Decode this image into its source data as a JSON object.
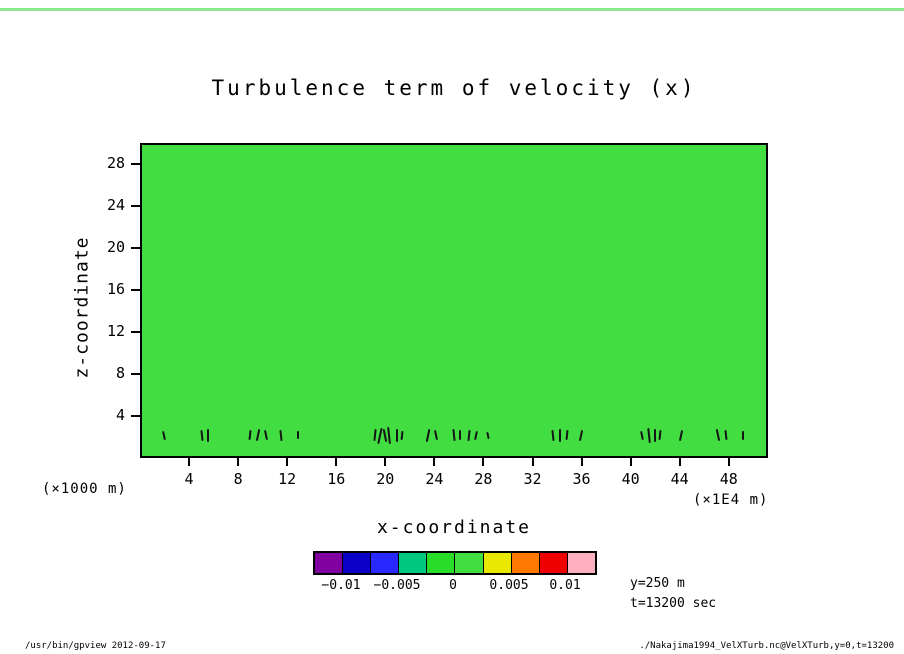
{
  "page": {
    "title": "Turbulence term of velocity (x)",
    "footer_left": "/usr/bin/gpview  2012-09-17",
    "footer_right": "./Nakajima1994_VelXTurb.nc@VelXTurb,y=0,t=13200"
  },
  "axes": {
    "x_label": "x-coordinate",
    "y_label": "z-coordinate",
    "x_unit": "(×1E4 m)",
    "y_unit": "(×1000 m)"
  },
  "annotations": {
    "line1": "y=250 m",
    "line2": "t=13200 sec"
  },
  "chart_data": {
    "type": "heatmap",
    "title": "Turbulence term of velocity (x)",
    "xlabel": "x-coordinate (×1E4 m)",
    "ylabel": "z-coordinate (×1000 m)",
    "x_range": [
      0,
      51.2
    ],
    "y_range": [
      0,
      30
    ],
    "x_ticks": [
      4,
      8,
      12,
      16,
      20,
      24,
      28,
      32,
      36,
      40,
      44,
      48
    ],
    "y_ticks": [
      4,
      8,
      12,
      16,
      20,
      24,
      28
    ],
    "grid": false,
    "background_color": "#41dd41",
    "field_description": "Shaded field is approximately uniform at 0 (inside the 0 to +0.005 color bin, bright green) over the whole domain, except small localized dark disturbances near z ≈ 2 (×1000 m).",
    "colorbar": {
      "colors": [
        "#8000a0",
        "#0b00c8",
        "#2828ff",
        "#00c880",
        "#28dc28",
        "#41dd41",
        "#e8e800",
        "#ff7800",
        "#ee0000",
        "#ffb0c0"
      ],
      "tick_labels": [
        "−0.01",
        "−0.005",
        "0",
        "0.005",
        "0.01"
      ],
      "tick_positions_pct": [
        10,
        30,
        50,
        70,
        90
      ],
      "orientation": "horizontal"
    },
    "disturbances": {
      "z_center": 2,
      "points": [
        [
          1.8,
          0.9
        ],
        [
          4.9,
          1.1
        ],
        [
          5.4,
          1.3
        ],
        [
          8.9,
          1.0
        ],
        [
          9.5,
          1.2
        ],
        [
          10.2,
          1.0
        ],
        [
          11.4,
          1.1
        ],
        [
          12.8,
          0.8
        ],
        [
          19.1,
          1.2
        ],
        [
          19.5,
          1.5
        ],
        [
          19.9,
          1.3
        ],
        [
          20.3,
          1.6
        ],
        [
          20.9,
          1.2
        ],
        [
          21.3,
          0.9
        ],
        [
          23.5,
          1.3
        ],
        [
          24.1,
          1.0
        ],
        [
          25.6,
          1.2
        ],
        [
          26.1,
          1.0
        ],
        [
          26.8,
          1.1
        ],
        [
          27.4,
          0.9
        ],
        [
          28.4,
          0.7
        ],
        [
          33.7,
          1.1
        ],
        [
          34.3,
          1.3
        ],
        [
          34.9,
          1.0
        ],
        [
          36.0,
          1.1
        ],
        [
          41.0,
          0.9
        ],
        [
          41.6,
          1.4
        ],
        [
          42.1,
          1.2
        ],
        [
          42.5,
          1.0
        ],
        [
          44.2,
          1.1
        ],
        [
          47.3,
          1.2
        ],
        [
          47.9,
          1.0
        ],
        [
          49.3,
          0.9
        ]
      ]
    },
    "slice": {
      "y": "y=250 m",
      "t": "t=13200 sec"
    },
    "legend_position": "bottom-center"
  }
}
